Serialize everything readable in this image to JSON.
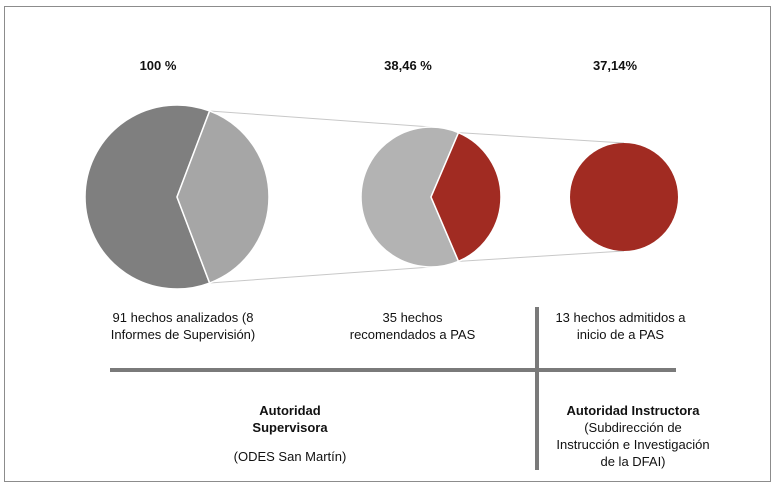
{
  "chart_data": {
    "type": "pie",
    "stages": [
      {
        "percent_label": "100 %",
        "caption": "91 hechos analizados (8 Informes de Supervisión)",
        "total": 91,
        "highlight": 35,
        "colors": {
          "base": "#7f7f7f",
          "highlight": "#a6a6a6"
        }
      },
      {
        "percent_label": "38,46 %",
        "caption": "35 hechos recomendados a PAS",
        "total": 35,
        "highlight": 13,
        "colors": {
          "base": "#b3b3b3",
          "highlight": "#a12b22"
        }
      },
      {
        "percent_label": "37,14%",
        "caption": "13 hechos admitidos a inicio de a PAS",
        "total": 13,
        "highlight": 13,
        "colors": {
          "base": "#a12b22",
          "highlight": "#a12b22"
        }
      }
    ]
  },
  "authorities": {
    "supervisora": {
      "title_line1": "Autoridad",
      "title_line2": "Supervisora",
      "subtitle": "(ODES San Martín)"
    },
    "instructora": {
      "title": "Autoridad Instructora",
      "subtitle_line1": "(Subdirección de",
      "subtitle_line2": "Instrucción e Investigación",
      "subtitle_line3": "de la DFAI)"
    }
  },
  "colors": {
    "dark_gray": "#7f7f7f",
    "mid_gray": "#a6a6a6",
    "light_gray": "#b3b3b3",
    "red": "#a12b22",
    "divider": "#7a7a7a"
  }
}
